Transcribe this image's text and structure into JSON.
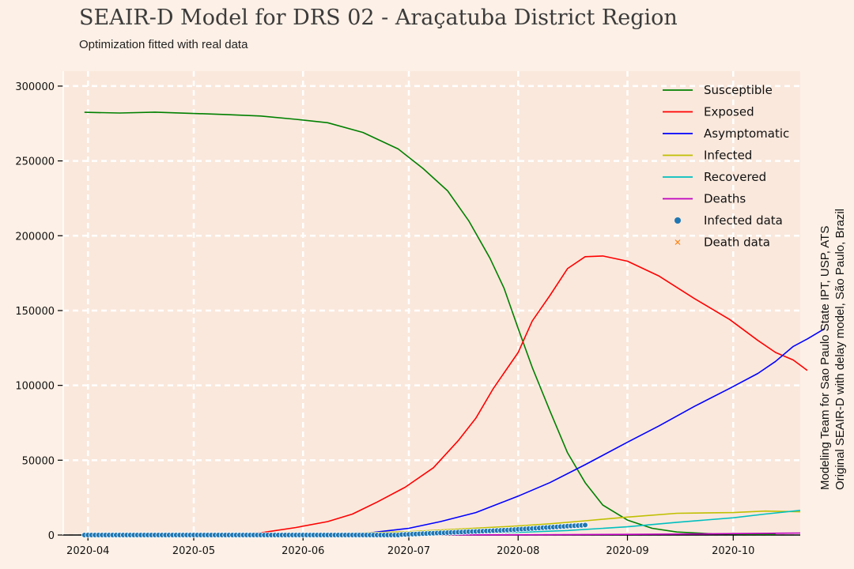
{
  "chart_data": {
    "type": "line",
    "title": "SEAIR-D Model for DRS 02 - Araçatuba District Region",
    "subtitle": "Optimization fitted with real data",
    "credit_lines": [
      "Modeling Team for Sao Paulo State IPT, USP, ATS",
      "Original SEAIR-D with delay model, São Paulo, Brazil"
    ],
    "x_ticks": [
      "2020-04",
      "2020-05",
      "2020-06",
      "2020-07",
      "2020-08",
      "2020-09",
      "2020-10"
    ],
    "x_range": [
      "2020-03-25",
      "2020-10-20"
    ],
    "y_ticks": [
      0,
      50000,
      100000,
      150000,
      200000,
      250000,
      300000
    ],
    "ylim": [
      0,
      310000
    ],
    "grid": true,
    "legend_position": "top-right",
    "series": [
      {
        "name": "Susceptible",
        "color": "#008000",
        "points": [
          [
            "2020-03-31",
            282500
          ],
          [
            "2020-04-10",
            282000
          ],
          [
            "2020-04-20",
            282600
          ],
          [
            "2020-04-30",
            281800
          ],
          [
            "2020-05-10",
            281000
          ],
          [
            "2020-05-20",
            280000
          ],
          [
            "2020-05-30",
            277800
          ],
          [
            "2020-06-08",
            275500
          ],
          [
            "2020-06-18",
            269000
          ],
          [
            "2020-06-28",
            258000
          ],
          [
            "2020-07-05",
            245000
          ],
          [
            "2020-07-12",
            230000
          ],
          [
            "2020-07-18",
            210000
          ],
          [
            "2020-07-24",
            185000
          ],
          [
            "2020-07-28",
            165000
          ],
          [
            "2020-08-01",
            138000
          ],
          [
            "2020-08-05",
            112000
          ],
          [
            "2020-08-10",
            83000
          ],
          [
            "2020-08-15",
            55000
          ],
          [
            "2020-08-20",
            35000
          ],
          [
            "2020-08-25",
            20000
          ],
          [
            "2020-09-01",
            10000
          ],
          [
            "2020-09-08",
            4500
          ],
          [
            "2020-09-15",
            2000
          ],
          [
            "2020-09-25",
            800
          ],
          [
            "2020-10-05",
            500
          ],
          [
            "2020-10-13",
            400
          ]
        ]
      },
      {
        "name": "Exposed",
        "color": "#ff0000",
        "points": [
          [
            "2020-03-31",
            0
          ],
          [
            "2020-05-10",
            200
          ],
          [
            "2020-05-20",
            1500
          ],
          [
            "2020-05-30",
            5000
          ],
          [
            "2020-06-08",
            9000
          ],
          [
            "2020-06-15",
            14000
          ],
          [
            "2020-06-22",
            22000
          ],
          [
            "2020-06-30",
            32000
          ],
          [
            "2020-07-08",
            45000
          ],
          [
            "2020-07-15",
            63000
          ],
          [
            "2020-07-20",
            78000
          ],
          [
            "2020-07-25",
            98000
          ],
          [
            "2020-08-01",
            122000
          ],
          [
            "2020-08-05",
            143000
          ],
          [
            "2020-08-10",
            160000
          ],
          [
            "2020-08-15",
            178000
          ],
          [
            "2020-08-20",
            186000
          ],
          [
            "2020-08-25",
            186500
          ],
          [
            "2020-09-01",
            183000
          ],
          [
            "2020-09-10",
            173000
          ],
          [
            "2020-09-20",
            158000
          ],
          [
            "2020-09-30",
            144000
          ],
          [
            "2020-10-08",
            130000
          ],
          [
            "2020-10-13",
            122000
          ],
          [
            "2020-10-18",
            117000
          ],
          [
            "2020-10-22",
            110000
          ]
        ]
      },
      {
        "name": "Asymptomatic",
        "color": "#0000ff",
        "points": [
          [
            "2020-03-31",
            0
          ],
          [
            "2020-06-01",
            200
          ],
          [
            "2020-06-20",
            1500
          ],
          [
            "2020-07-01",
            4500
          ],
          [
            "2020-07-10",
            9000
          ],
          [
            "2020-07-20",
            15000
          ],
          [
            "2020-08-01",
            26000
          ],
          [
            "2020-08-10",
            35000
          ],
          [
            "2020-08-20",
            47000
          ],
          [
            "2020-09-01",
            62000
          ],
          [
            "2020-09-10",
            73000
          ],
          [
            "2020-09-20",
            86000
          ],
          [
            "2020-09-30",
            98000
          ],
          [
            "2020-10-08",
            108000
          ],
          [
            "2020-10-13",
            116000
          ],
          [
            "2020-10-18",
            126000
          ],
          [
            "2020-10-22",
            131000
          ],
          [
            "2020-10-27",
            138000
          ]
        ]
      },
      {
        "name": "Infected",
        "color": "#bfbf00",
        "points": [
          [
            "2020-03-31",
            0
          ],
          [
            "2020-06-01",
            400
          ],
          [
            "2020-07-01",
            2200
          ],
          [
            "2020-08-01",
            6000
          ],
          [
            "2020-08-10",
            7500
          ],
          [
            "2020-08-20",
            9500
          ],
          [
            "2020-09-01",
            12000
          ],
          [
            "2020-09-15",
            14500
          ],
          [
            "2020-10-01",
            15000
          ],
          [
            "2020-10-10",
            16000
          ],
          [
            "2020-10-20",
            15500
          ]
        ]
      },
      {
        "name": "Recovered",
        "color": "#00bfbf",
        "points": [
          [
            "2020-03-31",
            0
          ],
          [
            "2020-07-01",
            500
          ],
          [
            "2020-08-01",
            1800
          ],
          [
            "2020-08-15",
            3000
          ],
          [
            "2020-09-01",
            5500
          ],
          [
            "2020-09-15",
            8500
          ],
          [
            "2020-10-01",
            11500
          ],
          [
            "2020-10-10",
            14000
          ],
          [
            "2020-10-20",
            16500
          ]
        ]
      },
      {
        "name": "Deaths",
        "color": "#bf00bf",
        "points": [
          [
            "2020-03-31",
            0
          ],
          [
            "2020-08-01",
            100
          ],
          [
            "2020-09-01",
            400
          ],
          [
            "2020-09-20",
            700
          ],
          [
            "2020-10-05",
            1000
          ],
          [
            "2020-10-15",
            1200
          ],
          [
            "2020-10-20",
            1300
          ]
        ]
      }
    ],
    "infected_data": {
      "name": "Infected data",
      "color": "#1f77b4",
      "start": "2020-03-31",
      "end": "2020-08-15",
      "values": [
        0,
        0,
        0,
        0,
        0,
        0,
        0,
        0,
        0,
        0,
        0,
        0,
        0,
        0,
        0,
        0,
        0,
        0,
        0,
        0,
        0,
        0,
        0,
        0,
        0,
        0,
        0,
        0,
        0,
        0,
        0,
        0,
        0,
        0,
        0,
        0,
        0,
        0,
        0,
        0,
        0,
        0,
        0,
        0,
        0,
        0,
        0,
        0,
        0,
        0,
        0,
        0,
        0,
        0,
        0,
        0,
        0,
        0,
        0,
        0,
        0,
        0,
        0,
        0,
        0,
        0,
        0,
        0,
        0,
        0,
        0,
        0,
        0,
        0,
        0,
        0,
        0,
        0,
        0,
        0,
        0,
        0,
        0,
        0,
        0,
        0,
        0,
        0,
        0,
        0,
        300,
        400,
        500,
        600,
        700,
        800,
        900,
        1000,
        1100,
        1200,
        1300,
        1400,
        1500,
        1600,
        1700,
        1800,
        1900,
        2000,
        2100,
        2200,
        2300,
        2400,
        2500,
        2600,
        2700,
        2800,
        2900,
        3000,
        3100,
        3200,
        3350,
        3500,
        3650,
        3800,
        3950,
        4100,
        4250,
        4400,
        4550,
        4700,
        4850,
        5000,
        5150,
        5300,
        5450,
        5600,
        5750,
        5900,
        6050,
        6200,
        6350,
        6500,
        6650
      ]
    },
    "death_data": {
      "name": "Death data",
      "color": "#ff7f0e",
      "start": "2020-03-31",
      "end": "2020-08-15",
      "values": []
    }
  }
}
